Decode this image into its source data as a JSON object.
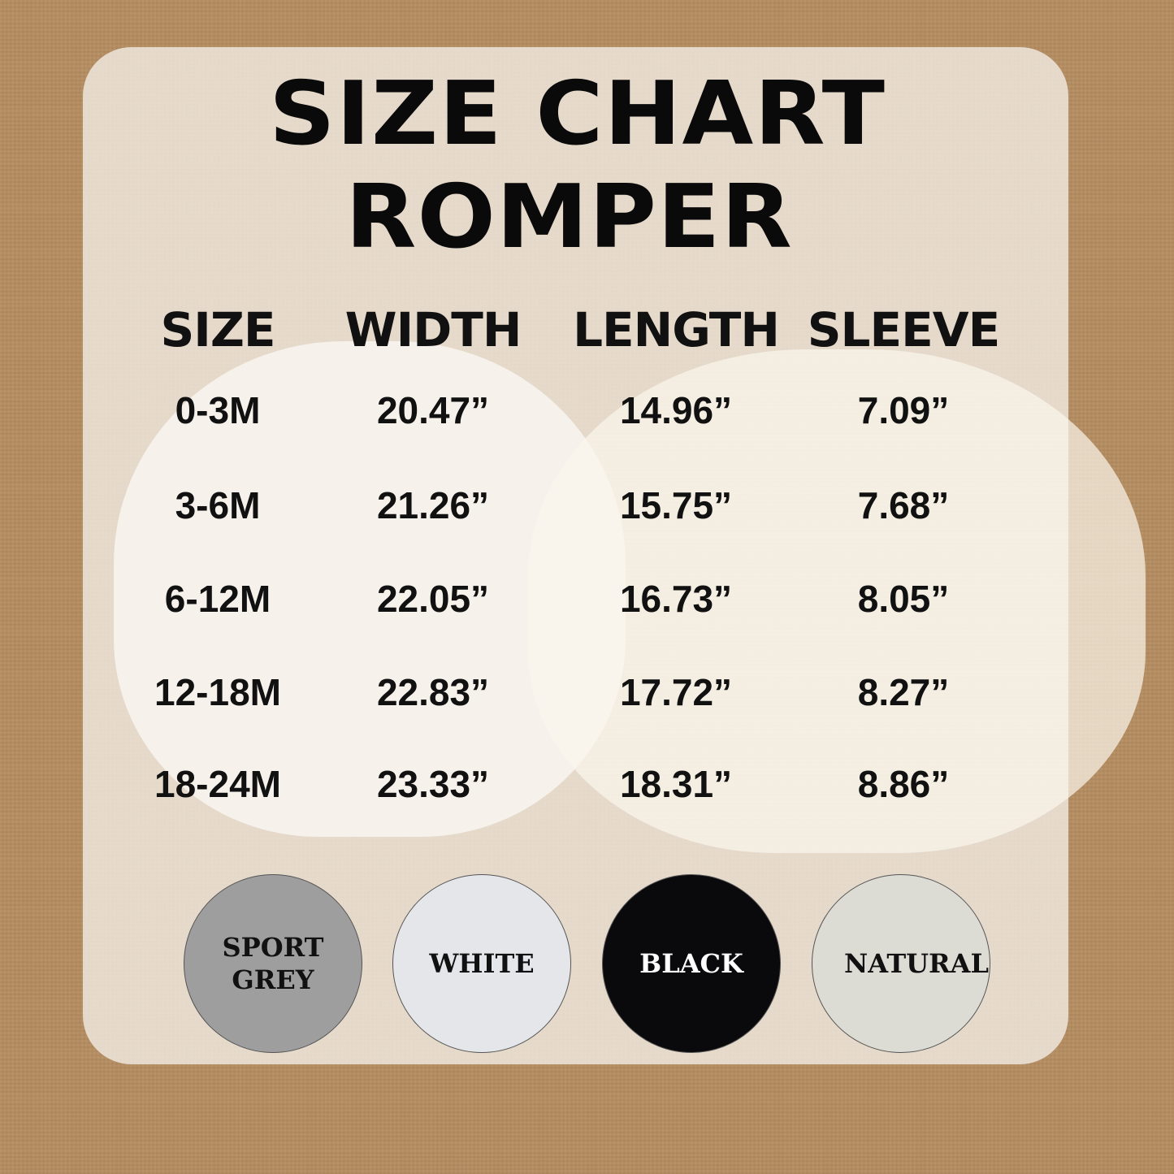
{
  "title": {
    "line1": "SIZE CHART",
    "line2": "ROMPER"
  },
  "headers": [
    "SIZE",
    "WIDTH",
    "LENGTH",
    "SLEEVE"
  ],
  "rows": [
    [
      "0-3M",
      "20.47”",
      "14.96”",
      "7.09”"
    ],
    [
      "3-6M",
      "21.26”",
      "15.75”",
      "7.68”"
    ],
    [
      "6-12M",
      "22.05”",
      "16.73”",
      "8.05”"
    ],
    [
      "12-18M",
      "22.83”",
      "17.72”",
      "8.27”"
    ],
    [
      "18-24M",
      "23.33”",
      "18.31”",
      "8.86”"
    ]
  ],
  "colors": [
    {
      "label": "SPORT GREY",
      "hex": "#9e9e9e",
      "text": "#111111"
    },
    {
      "label": "WHITE",
      "hex": "#e4e6ea",
      "text": "#111111"
    },
    {
      "label": "BLACK",
      "hex": "#0a0a0d",
      "text": "#ffffff"
    },
    {
      "label": "NATURAL",
      "hex": "#dcdcd4",
      "text": "#111111"
    }
  ]
}
